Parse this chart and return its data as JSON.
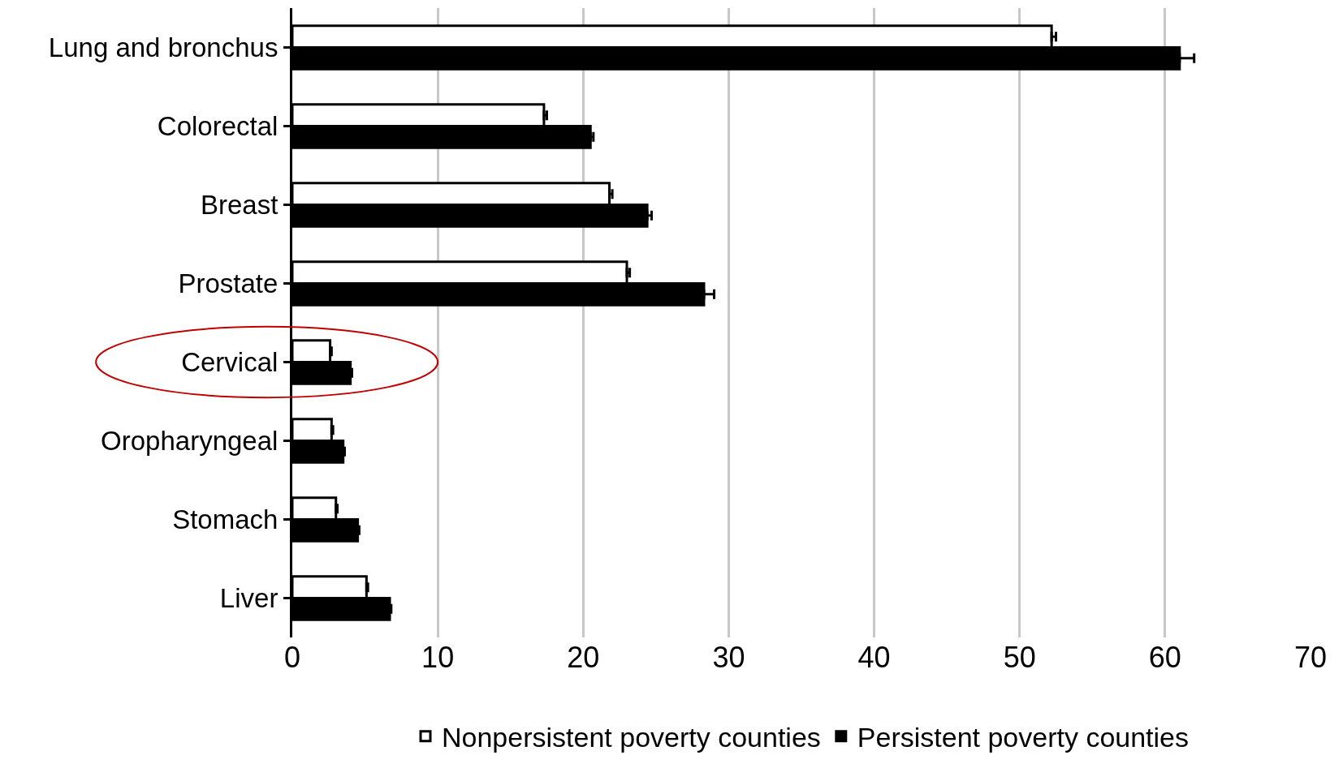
{
  "chart_data": {
    "type": "bar",
    "orientation": "horizontal",
    "categories": [
      "Lung and bronchus",
      "Colorectal",
      "Breast",
      "Prostate",
      "Cervical",
      "Oropharyngeal",
      "Stomach",
      "Liver"
    ],
    "series": [
      {
        "name": "Nonpersistent poverty counties",
        "color": "#ffffff",
        "values": [
          52.2,
          17.3,
          21.8,
          23.0,
          2.6,
          2.7,
          3.0,
          5.1
        ],
        "errors": [
          0.3,
          0.2,
          0.2,
          0.2,
          0.1,
          0.1,
          0.1,
          0.1
        ]
      },
      {
        "name": "Persistent poverty counties",
        "color": "#000000",
        "values": [
          61.0,
          20.5,
          24.4,
          28.3,
          4.0,
          3.5,
          4.5,
          6.7
        ],
        "errors": [
          1.0,
          0.2,
          0.3,
          0.7,
          0.1,
          0.1,
          0.1,
          0.1
        ]
      }
    ],
    "xlim": [
      0,
      70
    ],
    "xticks": [
      0,
      10,
      20,
      30,
      40,
      50,
      60,
      70
    ],
    "grid": "x",
    "legend": "bottom"
  }
}
